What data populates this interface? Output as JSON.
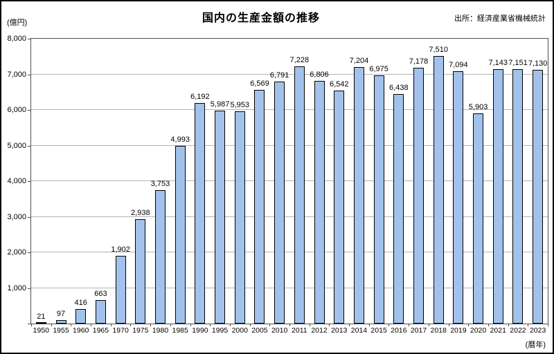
{
  "chart_data": {
    "type": "bar",
    "title": "国内の生産金額の推移",
    "source": "出所：経済産業省機械統計",
    "ylabel": "(億円)",
    "xlabel": "(暦年)",
    "categories": [
      "1950",
      "1955",
      "1960",
      "1965",
      "1970",
      "1975",
      "1980",
      "1985",
      "1990",
      "1995",
      "2000",
      "2005",
      "2010",
      "2011",
      "2012",
      "2013",
      "2014",
      "2015",
      "2016",
      "2017",
      "2018",
      "2019",
      "2020",
      "2021",
      "2022",
      "2023"
    ],
    "values": [
      21,
      97,
      416,
      663,
      1902,
      2938,
      3753,
      4993,
      6192,
      5987,
      5953,
      6569,
      6791,
      7228,
      6806,
      6542,
      7204,
      6975,
      6438,
      7178,
      7510,
      7094,
      5903,
      7143,
      7151,
      7130
    ],
    "value_labels": [
      "21",
      "97",
      "416",
      "663",
      "1,902",
      "2,938",
      "3,753",
      "4,993",
      "6,192",
      "5,987",
      "5,953",
      "6,569",
      "6,791",
      "7,228",
      "6,806",
      "6,542",
      "7,204",
      "6,975",
      "6,438",
      "7,178",
      "7,510",
      "7,094",
      "5,903",
      "7,143",
      "7,151",
      "7,130"
    ],
    "ylim": [
      0,
      8000
    ],
    "ytick_step": 1000,
    "ytick_labels": [
      "1,000",
      "2,000",
      "3,000",
      "4,000",
      "5,000",
      "6,000",
      "7,000",
      "8,000"
    ],
    "grid": true,
    "legend": "none",
    "colors": {
      "bar_fill": "#A3C2EB",
      "bar_border": "#000000",
      "gridline": "#B3B3B3",
      "frame": "#4d4d4d",
      "text": "#000000"
    }
  }
}
